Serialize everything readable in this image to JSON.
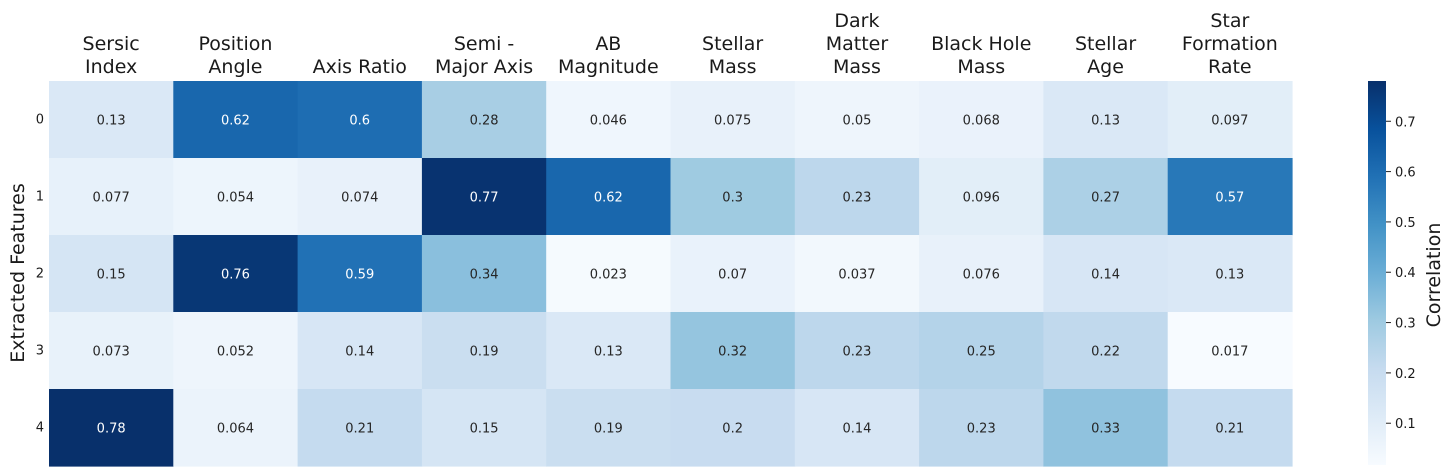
{
  "chart_data": {
    "type": "heatmap",
    "columns": [
      [
        "Sersic",
        "Index"
      ],
      [
        "Position",
        "Angle"
      ],
      [
        "Axis Ratio"
      ],
      [
        "Semi -",
        "Major Axis"
      ],
      [
        "AB",
        "Magnitude"
      ],
      [
        "Stellar",
        "Mass"
      ],
      [
        "Dark",
        "Matter",
        "Mass"
      ],
      [
        "Black Hole",
        "Mass"
      ],
      [
        "Stellar",
        "Age"
      ],
      [
        "Star",
        "Formation",
        "Rate"
      ]
    ],
    "rows": [
      "0",
      "1",
      "2",
      "3",
      "4"
    ],
    "ylabel": "Extracted Features",
    "values": [
      [
        0.13,
        0.62,
        0.6,
        0.28,
        0.046,
        0.075,
        0.05,
        0.068,
        0.13,
        0.097
      ],
      [
        0.077,
        0.054,
        0.074,
        0.77,
        0.62,
        0.3,
        0.23,
        0.096,
        0.27,
        0.57
      ],
      [
        0.15,
        0.76,
        0.59,
        0.34,
        0.023,
        0.07,
        0.037,
        0.076,
        0.14,
        0.13
      ],
      [
        0.073,
        0.052,
        0.14,
        0.19,
        0.13,
        0.32,
        0.23,
        0.25,
        0.22,
        0.017
      ],
      [
        0.78,
        0.064,
        0.21,
        0.15,
        0.19,
        0.2,
        0.14,
        0.23,
        0.33,
        0.21
      ]
    ],
    "value_labels": [
      [
        "0.13",
        "0.62",
        "0.6",
        "0.28",
        "0.046",
        "0.075",
        "0.05",
        "0.068",
        "0.13",
        "0.097"
      ],
      [
        "0.077",
        "0.054",
        "0.074",
        "0.77",
        "0.62",
        "0.3",
        "0.23",
        "0.096",
        "0.27",
        "0.57"
      ],
      [
        "0.15",
        "0.76",
        "0.59",
        "0.34",
        "0.023",
        "0.07",
        "0.037",
        "0.076",
        "0.14",
        "0.13"
      ],
      [
        "0.073",
        "0.052",
        "0.14",
        "0.19",
        "0.13",
        "0.32",
        "0.23",
        "0.25",
        "0.22",
        "0.017"
      ],
      [
        "0.78",
        "0.064",
        "0.21",
        "0.15",
        "0.19",
        "0.2",
        "0.14",
        "0.23",
        "0.33",
        "0.21"
      ]
    ],
    "colorbar": {
      "label": "Correlation",
      "range": [
        0.017,
        0.78
      ],
      "ticks": [
        0.1,
        0.2,
        0.3,
        0.4,
        0.5,
        0.6,
        0.7
      ],
      "tick_labels": [
        "0.1",
        "0.2",
        "0.3",
        "0.4",
        "0.5",
        "0.6",
        "0.7"
      ],
      "colormap": "Blues"
    }
  }
}
